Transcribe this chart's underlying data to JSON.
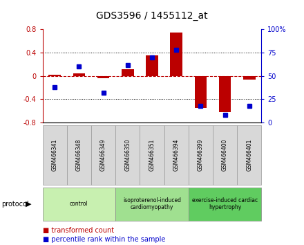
{
  "title": "GDS3596 / 1455112_at",
  "samples": [
    "GSM466341",
    "GSM466348",
    "GSM466349",
    "GSM466350",
    "GSM466351",
    "GSM466394",
    "GSM466399",
    "GSM466400",
    "GSM466401"
  ],
  "transformed_count": [
    0.02,
    0.04,
    -0.04,
    0.12,
    0.35,
    0.75,
    -0.55,
    -0.62,
    -0.06
  ],
  "percentile_rank": [
    38,
    60,
    32,
    62,
    70,
    78,
    18,
    8,
    18
  ],
  "groups": [
    {
      "label": "control",
      "start": 0,
      "end": 3,
      "color": "#c8f0b0"
    },
    {
      "label": "isoproterenol-induced\ncardiomyopathy",
      "start": 3,
      "end": 6,
      "color": "#a0e090"
    },
    {
      "label": "exercise-induced cardiac\nhypertrophy",
      "start": 6,
      "end": 9,
      "color": "#60cc60"
    }
  ],
  "bar_color": "#bb0000",
  "dot_color": "#0000cc",
  "ylim_left": [
    -0.8,
    0.8
  ],
  "ylim_right": [
    0,
    100
  ],
  "yticks_left": [
    -0.8,
    -0.4,
    0.0,
    0.4,
    0.8
  ],
  "yticks_right": [
    0,
    25,
    50,
    75,
    100
  ],
  "ytick_labels_left": [
    "-0.8",
    "-0.4",
    "0",
    "0.4",
    "0.8"
  ],
  "ytick_labels_right": [
    "0",
    "25",
    "50",
    "75",
    "100%"
  ],
  "hlines": [
    -0.4,
    0.0,
    0.4
  ],
  "protocol_label": "protocol",
  "legend_items": [
    {
      "label": "transformed count",
      "color": "#bb0000"
    },
    {
      "label": "percentile rank within the sample",
      "color": "#0000cc"
    }
  ]
}
